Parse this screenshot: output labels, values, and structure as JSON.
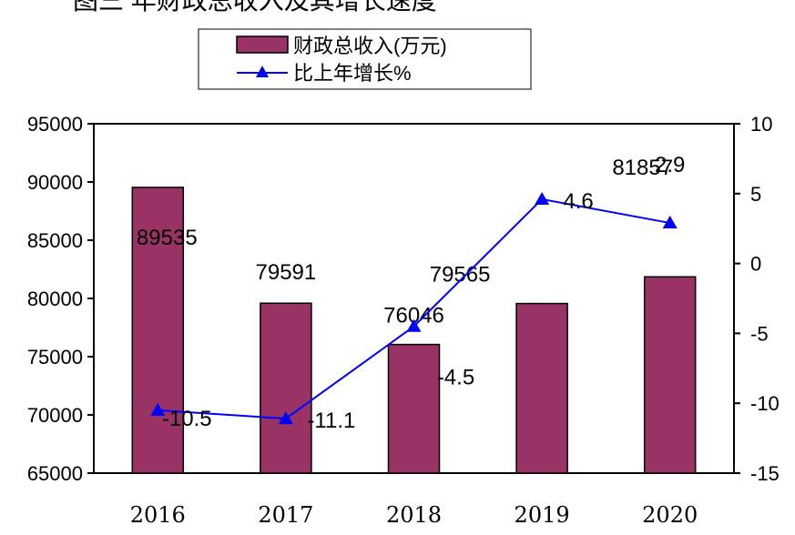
{
  "chart_data": {
    "type": "bar",
    "title": "图三 年财政总收入及其增长速度",
    "categories": [
      "2016",
      "2017",
      "2018",
      "2019",
      "2020"
    ],
    "series": [
      {
        "name": "财政总收入(万元)",
        "type": "bar",
        "axis": "left",
        "values": [
          89535,
          79591,
          76046,
          79565,
          81857
        ],
        "labels": [
          "89535",
          "79591",
          "76046",
          "79565",
          "81857"
        ],
        "color": "#993366"
      },
      {
        "name": "比上年增长%",
        "type": "line",
        "axis": "right",
        "values": [
          -10.5,
          -11.1,
          -4.5,
          4.6,
          2.9
        ],
        "labels": [
          "-10.5",
          "-11.1",
          "-4.5",
          "4.6",
          "2.9"
        ],
        "color": "#0000ff",
        "marker": "triangle"
      }
    ],
    "y_left": {
      "min": 65000,
      "max": 95000,
      "ticks": [
        "65000",
        "70000",
        "75000",
        "80000",
        "85000",
        "90000",
        "95000"
      ]
    },
    "y_right": {
      "min": -15,
      "max": 10,
      "ticks": [
        "-15",
        "-10",
        "-5",
        "0",
        "5",
        "10"
      ]
    },
    "grid": false,
    "legend_position": "top-center"
  }
}
